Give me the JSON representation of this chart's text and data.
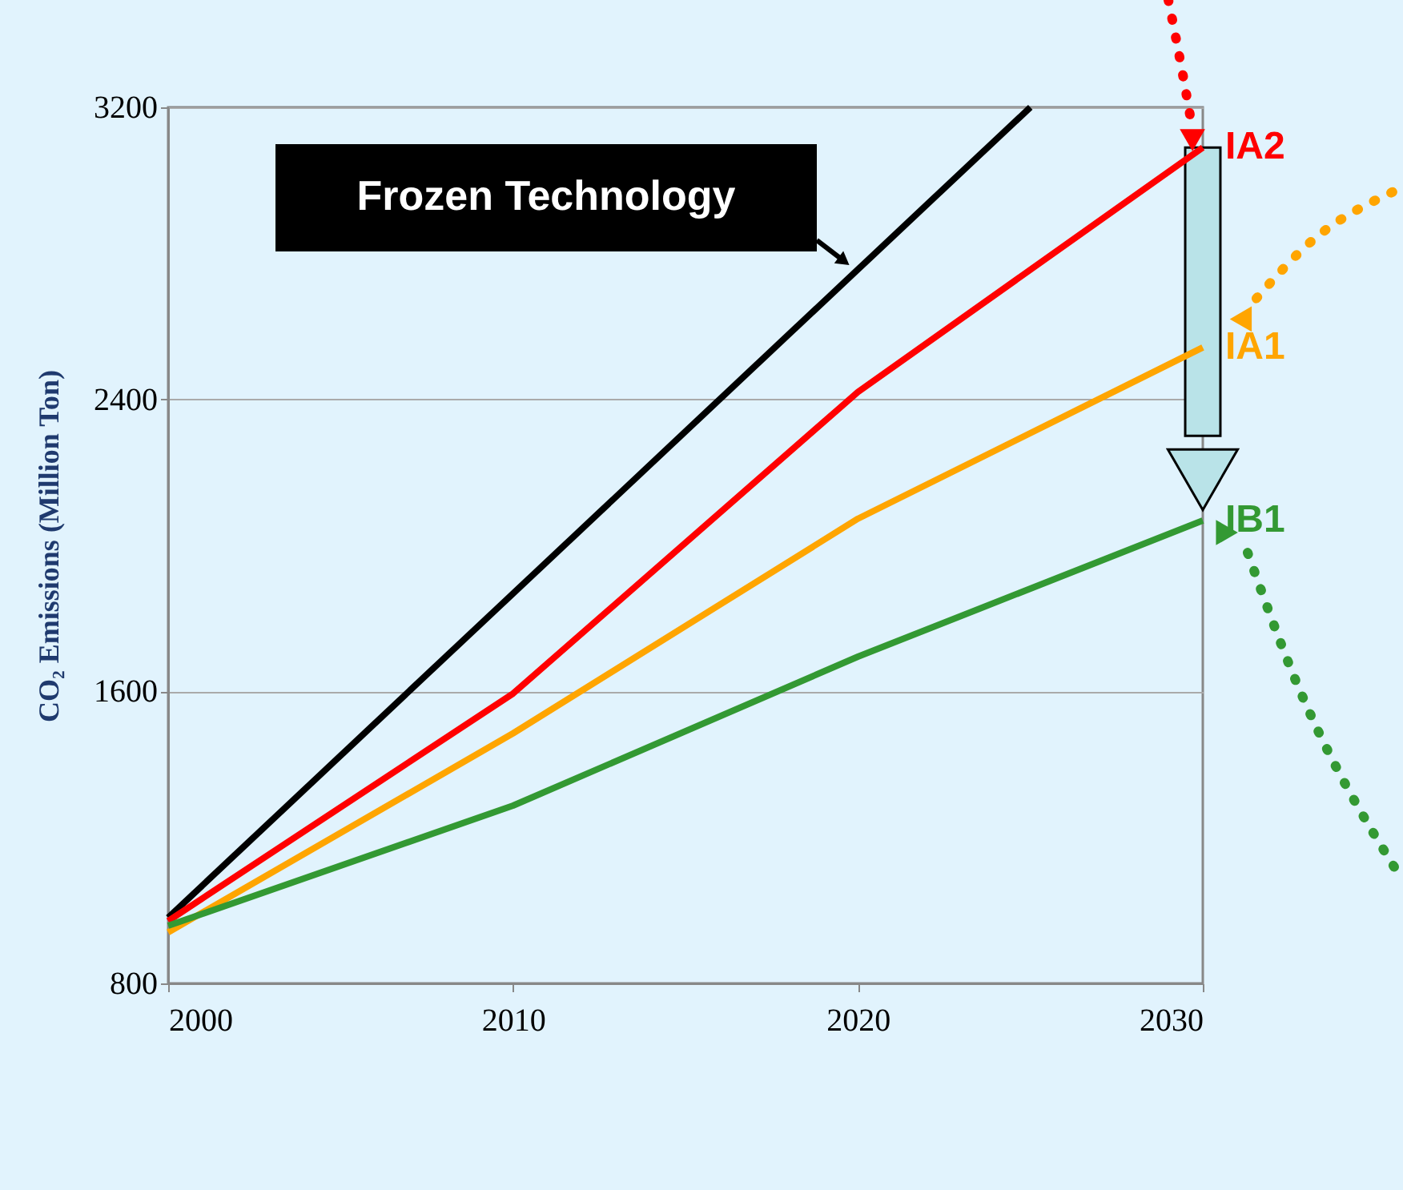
{
  "chart_data": {
    "type": "line",
    "ylabel": "CO₂ Emissions (Million Ton)",
    "x": [
      2000,
      2010,
      2020,
      2030
    ],
    "series": [
      {
        "color": "#000000",
        "x": [
          2000,
          2025
        ],
        "values": [
          980,
          3200
        ]
      },
      {
        "name": "IA2",
        "color": "#ff0000",
        "values": [
          971,
          1594,
          2420,
          3090
        ]
      },
      {
        "name": "IA1",
        "color": "#ffa500",
        "values": [
          940,
          1485,
          2073,
          2542
        ]
      },
      {
        "name": "IB1",
        "color": "#339933",
        "values": [
          958,
          1287,
          1695,
          2068
        ]
      }
    ],
    "annotations": [
      "Frozen Technology"
    ],
    "xlim": [
      2000,
      2030
    ],
    "xticks": [
      2000,
      2010,
      2020,
      2030
    ],
    "ylim": [
      800,
      3200
    ],
    "yticks": [
      800,
      1600,
      2400,
      3200
    ],
    "grid": "y",
    "legend": "right",
    "marker": "none",
    "line_style": "solid"
  }
}
